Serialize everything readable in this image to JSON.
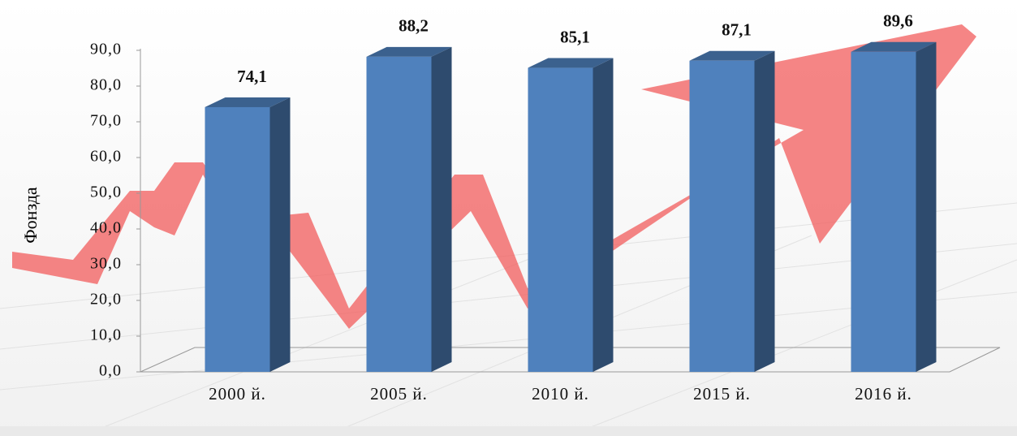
{
  "chart_data": {
    "type": "bar3d",
    "y_label": "Фонзда",
    "categories": [
      "2000 й.",
      "2005 й.",
      "2010 й.",
      "2015 й.",
      "2016 й."
    ],
    "values": [
      74.1,
      88.2,
      85.1,
      87.1,
      89.6
    ],
    "value_labels": [
      "74,1",
      "88,2",
      "85,1",
      "87,1",
      "89,6"
    ],
    "color": "#4f81bd",
    "ylim": [
      0,
      90
    ],
    "yticks": [
      {
        "value": 0,
        "label": "0,0"
      },
      {
        "value": 10,
        "label": "10,0"
      },
      {
        "value": 20,
        "label": "20,0"
      },
      {
        "value": 30,
        "label": "30,0"
      },
      {
        "value": 40,
        "label": "40,0"
      },
      {
        "value": 50,
        "label": "50,0"
      },
      {
        "value": 60,
        "label": "60,0"
      },
      {
        "value": 70,
        "label": "70,0"
      },
      {
        "value": 80,
        "label": "80,0"
      },
      {
        "value": 90,
        "label": "90,0"
      }
    ]
  }
}
